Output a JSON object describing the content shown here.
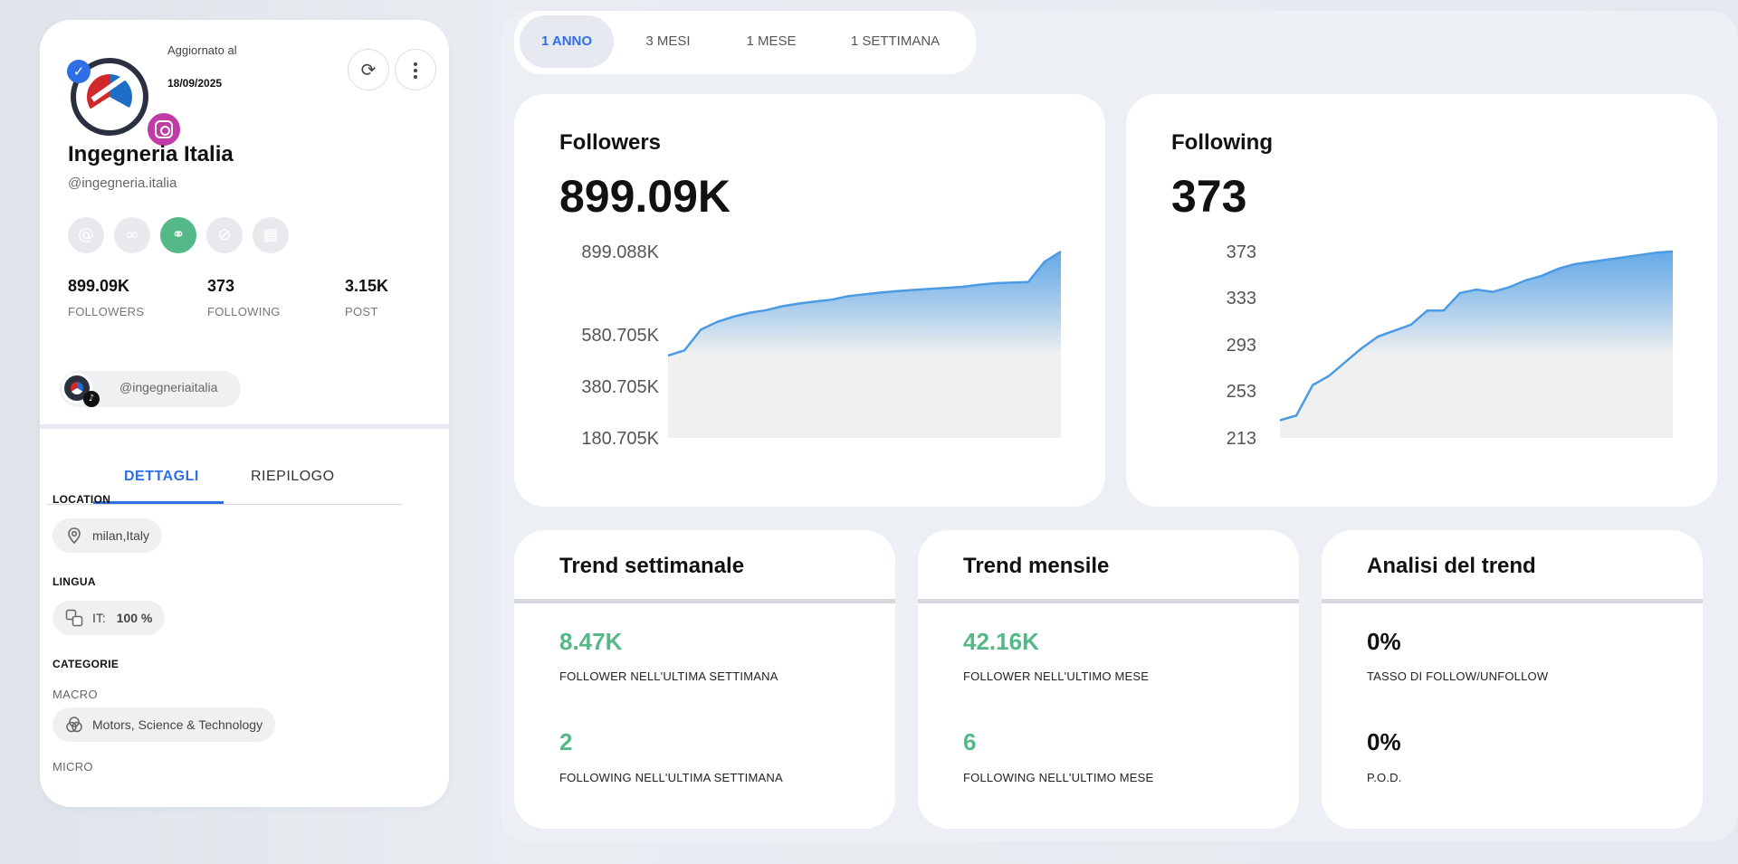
{
  "profile": {
    "updated_label": "Aggiornato al",
    "updated_date": "18/09/2025",
    "name": "Ingegneria Italia",
    "handle": "@ingegneria.italia",
    "platform_icons": [
      "threads-icon",
      "meta-icon",
      "categories-icon",
      "no-ads-icon",
      "calendar-icon"
    ],
    "stats": [
      {
        "value": "899.09K",
        "label": "FOLLOWERS"
      },
      {
        "value": "373",
        "label": "FOLLOWING"
      },
      {
        "value": "3.15K",
        "label": "POST"
      }
    ],
    "linked_account": "@ingegneriaitalia"
  },
  "tabs": [
    "DETTAGLI",
    "RIEPILOGO"
  ],
  "active_tab": "DETTAGLI",
  "details": {
    "location_title": "LOCATION",
    "location": "milan,Italy",
    "language_title": "LINGUA",
    "language_code": "IT:",
    "language_pct": "100 %",
    "categories_title": "CATEGORIE",
    "macro_label": "MACRO",
    "macro_value": "Motors, Science & Technology",
    "micro_label": "MICRO"
  },
  "range_options": [
    "1 ANNO",
    "3 MESI",
    "1 MESE",
    "1 SETTIMANA"
  ],
  "active_range": "1 ANNO",
  "followers_card": {
    "title": "Followers",
    "value": "899.09K"
  },
  "following_card": {
    "title": "Following",
    "value": "373"
  },
  "chart_data": [
    {
      "type": "area",
      "title": "Followers",
      "ytick_labels": [
        "899.088K",
        "580.705K",
        "380.705K",
        "180.705K"
      ],
      "yticks": [
        899088,
        580705,
        380705,
        180705
      ],
      "x": [
        0,
        1,
        2,
        3,
        4,
        5,
        6,
        7,
        8,
        9,
        10,
        11,
        12,
        13,
        14,
        15,
        16,
        17,
        18,
        19,
        20,
        21,
        22,
        23,
        24
      ],
      "values": [
        500000,
        520000,
        600000,
        630000,
        650000,
        665000,
        675000,
        690000,
        700000,
        708000,
        715000,
        728000,
        735000,
        742000,
        748000,
        752000,
        756000,
        760000,
        764000,
        772000,
        778000,
        780000,
        782000,
        860000,
        899088
      ],
      "color": "#4a9be3"
    },
    {
      "type": "area",
      "title": "Following",
      "ytick_labels": [
        "373",
        "333",
        "293",
        "253",
        "213"
      ],
      "yticks": [
        373,
        333,
        293,
        253,
        213
      ],
      "x": [
        0,
        1,
        2,
        3,
        4,
        5,
        6,
        7,
        8,
        9,
        10,
        11,
        12,
        13,
        14,
        15,
        16,
        17,
        18,
        19,
        20,
        21,
        22,
        23,
        24
      ],
      "values": [
        228,
        232,
        258,
        266,
        278,
        290,
        300,
        305,
        310,
        322,
        322,
        337,
        340,
        338,
        342,
        348,
        352,
        358,
        362,
        364,
        366,
        368,
        370,
        372,
        373
      ],
      "color": "#4a9be3"
    }
  ],
  "trend_cards": [
    {
      "title": "Trend settimanale",
      "items": [
        {
          "value": "8.47K",
          "label": "FOLLOWER NELL'ULTIMA SETTIMANA",
          "tone": "green"
        },
        {
          "value": "2",
          "label": "FOLLOWING NELL'ULTIMA SETTIMANA",
          "tone": "green"
        }
      ]
    },
    {
      "title": "Trend mensile",
      "items": [
        {
          "value": "42.16K",
          "label": "FOLLOWER NELL'ULTIMO MESE",
          "tone": "green"
        },
        {
          "value": "6",
          "label": "FOLLOWING NELL'ULTIMO MESE",
          "tone": "green"
        }
      ]
    },
    {
      "title": "Analisi del trend",
      "items": [
        {
          "value": "0%",
          "label": "TASSO DI FOLLOW/UNFOLLOW",
          "tone": "dark"
        },
        {
          "value": "0%",
          "label": "P.O.D.",
          "tone": "dark"
        }
      ]
    }
  ],
  "colors": {
    "accent": "#2f6fe5",
    "green": "#54b987",
    "area_top": "#4a9be3",
    "area_bottom": "#f0f0f0"
  }
}
